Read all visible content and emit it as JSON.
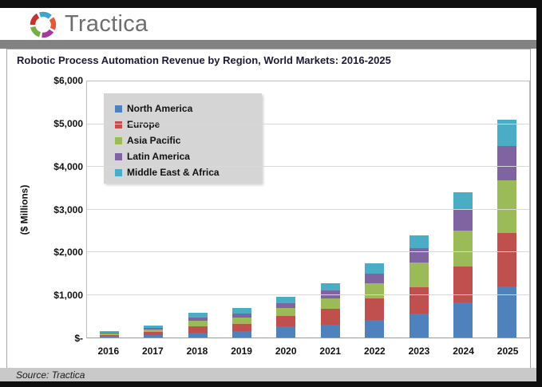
{
  "header": {
    "logo_text": "Tractica",
    "logo_icon": "tractica-pinwheel-icon",
    "logo_icon_colors": [
      "#3fa5c6",
      "#e2593b",
      "#a33a9c",
      "#76af43",
      "#bf3730"
    ],
    "logo_text_color": "#6d6e70"
  },
  "footer": {
    "source": "Source: Tractica"
  },
  "colors": {
    "title_text": "#1c1a35",
    "legend_background": "#d5d5d5",
    "gridline": "#d8d8d8",
    "divider_bar": "#828282",
    "source_bar": "#c9c9c9",
    "frame_border": "#a8a8a8"
  },
  "chart_data": {
    "type": "bar",
    "stacked": true,
    "title": "Robotic Process Automation Revenue by Region, World Markets: 2016-2025",
    "xlabel": "",
    "ylabel": "($ Millions)",
    "ylim": [
      0,
      6000
    ],
    "ytick_values": [
      0,
      1000,
      2000,
      3000,
      4000,
      5000,
      6000
    ],
    "ytick_labels": [
      "$-",
      "$1,000",
      "$2,000",
      "$3,000",
      "$4,000",
      "$5,000",
      "$6,000"
    ],
    "grid": "horizontal",
    "legend_position": "upper-left-inside",
    "categories": [
      "2016",
      "2017",
      "2018",
      "2019",
      "2020",
      "2021",
      "2022",
      "2023",
      "2024",
      "2025"
    ],
    "series": [
      {
        "name": "North America",
        "color": "#4F81BD",
        "values": [
          30,
          50,
          120,
          150,
          260,
          305,
          410,
          555,
          815,
          1200
        ]
      },
      {
        "name": "Europe",
        "color": "#C0504D",
        "values": [
          35,
          75,
          145,
          175,
          250,
          360,
          500,
          620,
          845,
          1250
        ]
      },
      {
        "name": "Asia Pacific",
        "color": "#9BBB59",
        "values": [
          30,
          60,
          120,
          150,
          175,
          245,
          360,
          575,
          840,
          1230
        ]
      },
      {
        "name": "Latin America",
        "color": "#8064A2",
        "values": [
          20,
          40,
          85,
          90,
          110,
          190,
          235,
          340,
          510,
          800
        ]
      },
      {
        "name": "Middle East & Africa",
        "color": "#4BACC6",
        "values": [
          35,
          55,
          105,
          135,
          150,
          170,
          235,
          310,
          390,
          630
        ]
      }
    ],
    "totals": [
      150,
      280,
      575,
      700,
      945,
      1270,
      1740,
      2400,
      3400,
      5110
    ]
  }
}
